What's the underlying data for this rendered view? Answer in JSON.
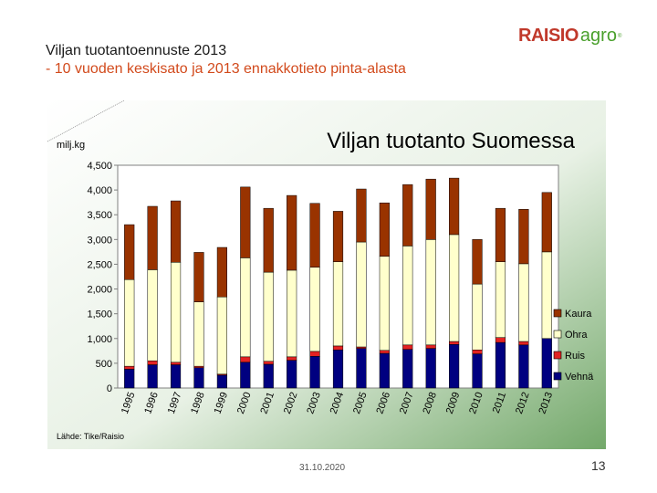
{
  "slide": {
    "title": "Viljan tuotantoennuste 2013",
    "subtitle_prefix": "- 10 vuoden keskisato ja 2013 ennakkotieto pinta-alasta",
    "logo_main": "RAISIO",
    "logo_sub": "agro",
    "date": "31.10.2020",
    "page_number": "13"
  },
  "colors": {
    "Vehnä": "#000080",
    "Ruis": "#e32222",
    "Ohra": "#ffffcc",
    "Kaura": "#993300"
  },
  "chart_data": {
    "type": "bar",
    "stacked": true,
    "title": "Viljan tuotanto Suomessa",
    "ylabel": "milj.kg",
    "source": "Lähde: Tike/Raisio",
    "categories": [
      "1995",
      "1996",
      "1997",
      "1998",
      "1999",
      "2000",
      "2001",
      "2002",
      "2003",
      "2004",
      "2005",
      "2006",
      "2007",
      "2008",
      "2009",
      "2010",
      "2011",
      "2012",
      "2013"
    ],
    "ylim": [
      0,
      4500
    ],
    "yticks": [
      0,
      500,
      1000,
      1500,
      2000,
      2500,
      3000,
      3500,
      4000,
      4500
    ],
    "ytick_labels": [
      "0",
      "500",
      "1,000",
      "1,500",
      "2,000",
      "2,500",
      "3,000",
      "3,500",
      "4,000",
      "4,500"
    ],
    "legend_position": "right",
    "series": [
      {
        "name": "Vehnä",
        "values": [
          380,
          470,
          470,
          410,
          260,
          520,
          480,
          560,
          640,
          770,
          800,
          700,
          780,
          800,
          880,
          690,
          920,
          870,
          1000
        ]
      },
      {
        "name": "Ruis",
        "values": [
          60,
          80,
          50,
          30,
          20,
          110,
          60,
          70,
          100,
          80,
          30,
          60,
          90,
          70,
          60,
          80,
          100,
          70,
          0
        ]
      },
      {
        "name": "Ohra",
        "values": [
          1750,
          1840,
          2020,
          1300,
          1560,
          2000,
          1800,
          1750,
          1700,
          1700,
          2120,
          1900,
          2000,
          2130,
          2160,
          1330,
          1530,
          1570,
          1750
        ]
      },
      {
        "name": "Kaura",
        "values": [
          1110,
          1280,
          1240,
          1000,
          1000,
          1430,
          1290,
          1510,
          1290,
          1020,
          1070,
          1080,
          1240,
          1220,
          1140,
          900,
          1080,
          1100,
          1200
        ]
      }
    ]
  }
}
